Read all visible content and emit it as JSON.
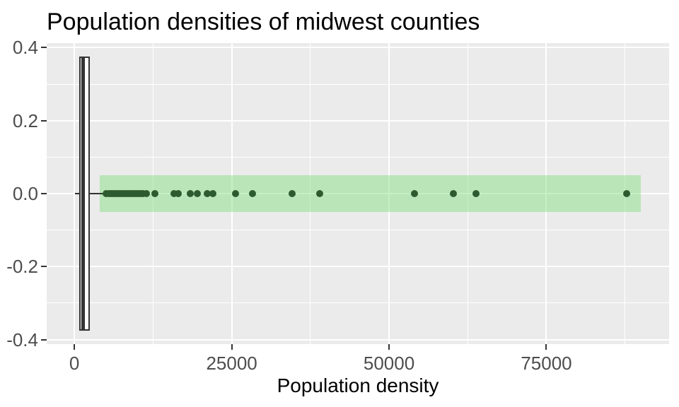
{
  "chart_data": {
    "type": "boxplot_scatter",
    "title": "Population densities of midwest counties",
    "xlabel": "Population density",
    "ylabel": "",
    "xlim": [
      -4400,
      94500
    ],
    "ylim": [
      -0.4125,
      0.4125
    ],
    "grid": true,
    "legend": false,
    "x_major_ticks": [
      {
        "value": 0,
        "label": "0"
      },
      {
        "value": 25000,
        "label": "25000"
      },
      {
        "value": 50000,
        "label": "50000"
      },
      {
        "value": 75000,
        "label": "75000"
      }
    ],
    "x_minor_ticks": [
      12500,
      37500,
      62500,
      87500
    ],
    "y_major_ticks": [
      {
        "value": 0.4,
        "label": "0.4"
      },
      {
        "value": 0.2,
        "label": "0.2"
      },
      {
        "value": 0.0,
        "label": "0.0"
      },
      {
        "value": -0.2,
        "label": "-0.2"
      },
      {
        "value": -0.4,
        "label": "-0.4"
      }
    ],
    "y_minor_ticks": [
      0.3,
      0.1,
      -0.1,
      -0.3
    ],
    "highlight_band": {
      "xmin": 4000,
      "xmax": 90000,
      "ymin": -0.05,
      "ymax": 0.05,
      "fill": "#7CDE7C",
      "opacity": 0.45
    },
    "boxplot": {
      "y_center": 0,
      "y_half_height": 0.375,
      "whisker_low": 85,
      "q1": 770,
      "median": 1420,
      "q3": 2450,
      "whisker_high": 4480,
      "fill": "#FFFFFF",
      "stroke": "#333333"
    },
    "points": {
      "y": 0,
      "color": "#2D5A2F",
      "x_values": [
        5080,
        5530,
        5870,
        6200,
        6540,
        6880,
        7210,
        7550,
        7890,
        8220,
        8560,
        8900,
        9230,
        9570,
        9910,
        10240,
        10580,
        10920,
        11480,
        12770,
        15820,
        16530,
        18430,
        19590,
        21160,
        21990,
        25650,
        28270,
        34620,
        39000,
        54080,
        60250,
        63790,
        87730
      ]
    }
  },
  "colors": {
    "panel_bg": "#EBEBEB",
    "grid": "#FFFFFF",
    "tick_label": "#4D4D4D",
    "axis_title": "#000000",
    "tick_mark": "#333333"
  }
}
